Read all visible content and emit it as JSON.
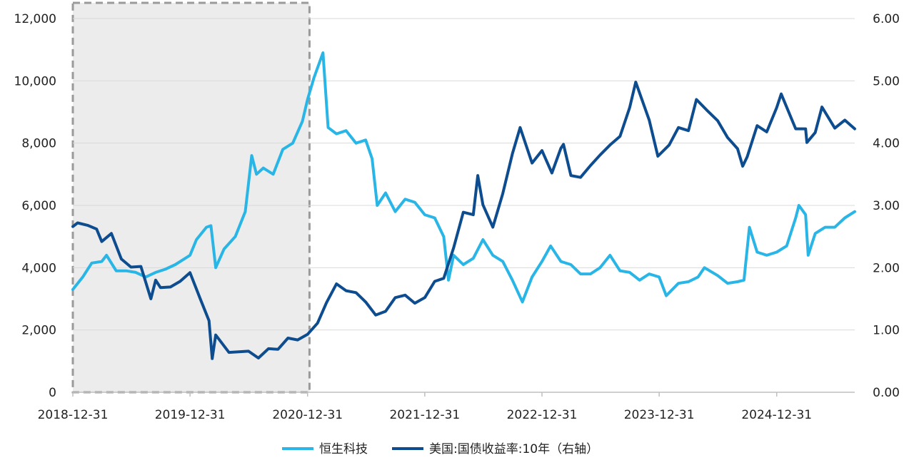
{
  "chart_data": {
    "type": "line",
    "title": "",
    "xlabel": "",
    "ylabel_left": "",
    "ylabel_right": "",
    "x_start": "2018-12-31",
    "x_end": "2025-08-31",
    "x_ticks": [
      "2018-12-31",
      "2019-12-31",
      "2020-12-31",
      "2021-12-31",
      "2022-12-31",
      "2023-12-31",
      "2024-12-31"
    ],
    "y_left": {
      "range": [
        0,
        12000
      ],
      "ticks": [
        "0",
        "2,000",
        "4,000",
        "6,000",
        "8,000",
        "10,000",
        "12,000"
      ]
    },
    "y_right": {
      "range": [
        0,
        6
      ],
      "ticks": [
        "0.00",
        "1.00",
        "2.00",
        "3.00",
        "4.00",
        "5.00",
        "6.00"
      ]
    },
    "grid": "horizontal",
    "legend_position": "bottom",
    "highlight_region": {
      "x_from": "2018-12-31",
      "x_to": "2021-01-06",
      "style": "dashed-gray-box"
    },
    "series": [
      {
        "name": "恒生科技",
        "axis": "left",
        "color": "#29b6e6",
        "points": [
          [
            "2018-12-31",
            3300
          ],
          [
            "2019-01-31",
            3700
          ],
          [
            "2019-02-28",
            4150
          ],
          [
            "2019-03-31",
            4200
          ],
          [
            "2019-04-15",
            4400
          ],
          [
            "2019-05-15",
            3900
          ],
          [
            "2019-06-15",
            3900
          ],
          [
            "2019-07-15",
            3850
          ],
          [
            "2019-08-15",
            3700
          ],
          [
            "2019-09-15",
            3850
          ],
          [
            "2019-10-15",
            3950
          ],
          [
            "2019-11-15",
            4100
          ],
          [
            "2019-12-31",
            4400
          ],
          [
            "2020-01-20",
            4900
          ],
          [
            "2020-02-20",
            5300
          ],
          [
            "2020-03-05",
            5350
          ],
          [
            "2020-03-20",
            4000
          ],
          [
            "2020-04-15",
            4600
          ],
          [
            "2020-05-20",
            5000
          ],
          [
            "2020-06-20",
            5800
          ],
          [
            "2020-07-10",
            7600
          ],
          [
            "2020-07-25",
            7000
          ],
          [
            "2020-08-15",
            7200
          ],
          [
            "2020-09-15",
            7000
          ],
          [
            "2020-10-15",
            7800
          ],
          [
            "2020-11-15",
            8000
          ],
          [
            "2020-12-15",
            8700
          ],
          [
            "2020-12-31",
            9400
          ],
          [
            "2021-01-20",
            10100
          ],
          [
            "2021-02-17",
            10900
          ],
          [
            "2021-03-05",
            8500
          ],
          [
            "2021-03-31",
            8300
          ],
          [
            "2021-04-30",
            8400
          ],
          [
            "2021-05-31",
            8000
          ],
          [
            "2021-06-30",
            8100
          ],
          [
            "2021-07-20",
            7500
          ],
          [
            "2021-08-05",
            6000
          ],
          [
            "2021-08-31",
            6400
          ],
          [
            "2021-09-30",
            5800
          ],
          [
            "2021-10-31",
            6200
          ],
          [
            "2021-11-30",
            6100
          ],
          [
            "2021-12-31",
            5700
          ],
          [
            "2022-01-31",
            5600
          ],
          [
            "2022-02-28",
            5000
          ],
          [
            "2022-03-15",
            3600
          ],
          [
            "2022-03-31",
            4400
          ],
          [
            "2022-04-30",
            4100
          ],
          [
            "2022-05-31",
            4300
          ],
          [
            "2022-06-30",
            4900
          ],
          [
            "2022-07-31",
            4400
          ],
          [
            "2022-08-31",
            4200
          ],
          [
            "2022-09-30",
            3600
          ],
          [
            "2022-10-31",
            2900
          ],
          [
            "2022-11-30",
            3700
          ],
          [
            "2022-12-31",
            4200
          ],
          [
            "2023-01-27",
            4700
          ],
          [
            "2023-02-28",
            4200
          ],
          [
            "2023-03-31",
            4100
          ],
          [
            "2023-04-30",
            3800
          ],
          [
            "2023-05-31",
            3800
          ],
          [
            "2023-06-30",
            4000
          ],
          [
            "2023-07-31",
            4400
          ],
          [
            "2023-08-31",
            3900
          ],
          [
            "2023-09-30",
            3850
          ],
          [
            "2023-10-31",
            3600
          ],
          [
            "2023-11-30",
            3800
          ],
          [
            "2023-12-31",
            3700
          ],
          [
            "2024-01-22",
            3100
          ],
          [
            "2024-02-29",
            3500
          ],
          [
            "2024-03-31",
            3550
          ],
          [
            "2024-04-30",
            3700
          ],
          [
            "2024-05-20",
            4000
          ],
          [
            "2024-06-30",
            3750
          ],
          [
            "2024-07-31",
            3500
          ],
          [
            "2024-08-31",
            3550
          ],
          [
            "2024-09-20",
            3600
          ],
          [
            "2024-10-07",
            5300
          ],
          [
            "2024-10-31",
            4500
          ],
          [
            "2024-11-30",
            4400
          ],
          [
            "2024-12-31",
            4500
          ],
          [
            "2025-01-31",
            4700
          ],
          [
            "2025-02-28",
            5600
          ],
          [
            "2025-03-10",
            6000
          ],
          [
            "2025-03-31",
            5700
          ],
          [
            "2025-04-08",
            4400
          ],
          [
            "2025-04-30",
            5100
          ],
          [
            "2025-05-31",
            5300
          ],
          [
            "2025-06-30",
            5300
          ],
          [
            "2025-07-31",
            5600
          ],
          [
            "2025-08-31",
            5800
          ]
        ]
      },
      {
        "name": "美国:国债收益率:10年（右轴）",
        "axis": "right",
        "color": "#0d4d8f",
        "points": [
          [
            "2018-12-31",
            2.66
          ],
          [
            "2019-01-15",
            2.72
          ],
          [
            "2019-02-15",
            2.68
          ],
          [
            "2019-03-15",
            2.62
          ],
          [
            "2019-03-31",
            2.42
          ],
          [
            "2019-04-30",
            2.55
          ],
          [
            "2019-05-31",
            2.14
          ],
          [
            "2019-06-30",
            2.01
          ],
          [
            "2019-07-31",
            2.02
          ],
          [
            "2019-08-31",
            1.5
          ],
          [
            "2019-09-15",
            1.8
          ],
          [
            "2019-09-30",
            1.68
          ],
          [
            "2019-10-31",
            1.69
          ],
          [
            "2019-11-30",
            1.78
          ],
          [
            "2019-12-31",
            1.92
          ],
          [
            "2020-01-31",
            1.51
          ],
          [
            "2020-02-28",
            1.15
          ],
          [
            "2020-03-09",
            0.54
          ],
          [
            "2020-03-20",
            0.92
          ],
          [
            "2020-04-30",
            0.64
          ],
          [
            "2020-05-31",
            0.65
          ],
          [
            "2020-06-30",
            0.66
          ],
          [
            "2020-07-31",
            0.55
          ],
          [
            "2020-08-31",
            0.7
          ],
          [
            "2020-09-30",
            0.69
          ],
          [
            "2020-10-31",
            0.87
          ],
          [
            "2020-11-30",
            0.84
          ],
          [
            "2020-12-31",
            0.93
          ],
          [
            "2021-01-31",
            1.11
          ],
          [
            "2021-02-28",
            1.44
          ],
          [
            "2021-03-31",
            1.74
          ],
          [
            "2021-04-30",
            1.63
          ],
          [
            "2021-05-31",
            1.6
          ],
          [
            "2021-06-30",
            1.45
          ],
          [
            "2021-07-31",
            1.24
          ],
          [
            "2021-08-31",
            1.3
          ],
          [
            "2021-09-30",
            1.52
          ],
          [
            "2021-10-31",
            1.56
          ],
          [
            "2021-11-30",
            1.43
          ],
          [
            "2021-12-31",
            1.52
          ],
          [
            "2022-01-31",
            1.78
          ],
          [
            "2022-02-28",
            1.83
          ],
          [
            "2022-03-31",
            2.32
          ],
          [
            "2022-04-30",
            2.89
          ],
          [
            "2022-05-31",
            2.85
          ],
          [
            "2022-06-14",
            3.48
          ],
          [
            "2022-06-30",
            3.01
          ],
          [
            "2022-07-31",
            2.65
          ],
          [
            "2022-08-31",
            3.19
          ],
          [
            "2022-09-30",
            3.83
          ],
          [
            "2022-10-24",
            4.25
          ],
          [
            "2022-11-30",
            3.68
          ],
          [
            "2022-12-31",
            3.88
          ],
          [
            "2023-01-31",
            3.52
          ],
          [
            "2023-02-28",
            3.92
          ],
          [
            "2023-03-08",
            3.98
          ],
          [
            "2023-03-31",
            3.48
          ],
          [
            "2023-04-30",
            3.45
          ],
          [
            "2023-05-31",
            3.64
          ],
          [
            "2023-06-30",
            3.81
          ],
          [
            "2023-07-31",
            3.97
          ],
          [
            "2023-08-31",
            4.11
          ],
          [
            "2023-09-30",
            4.57
          ],
          [
            "2023-10-19",
            4.98
          ],
          [
            "2023-11-30",
            4.37
          ],
          [
            "2023-12-27",
            3.79
          ],
          [
            "2024-01-31",
            3.97
          ],
          [
            "2024-02-29",
            4.25
          ],
          [
            "2024-03-31",
            4.2
          ],
          [
            "2024-04-25",
            4.7
          ],
          [
            "2024-05-31",
            4.51
          ],
          [
            "2024-06-30",
            4.36
          ],
          [
            "2024-07-31",
            4.09
          ],
          [
            "2024-08-31",
            3.91
          ],
          [
            "2024-09-16",
            3.63
          ],
          [
            "2024-09-30",
            3.78
          ],
          [
            "2024-10-31",
            4.28
          ],
          [
            "2024-11-30",
            4.18
          ],
          [
            "2024-12-31",
            4.57
          ],
          [
            "2025-01-14",
            4.79
          ],
          [
            "2025-02-28",
            4.23
          ],
          [
            "2025-03-31",
            4.23
          ],
          [
            "2025-04-04",
            4.01
          ],
          [
            "2025-04-30",
            4.17
          ],
          [
            "2025-05-21",
            4.58
          ],
          [
            "2025-06-30",
            4.24
          ],
          [
            "2025-07-31",
            4.37
          ],
          [
            "2025-08-31",
            4.23
          ]
        ]
      }
    ]
  }
}
